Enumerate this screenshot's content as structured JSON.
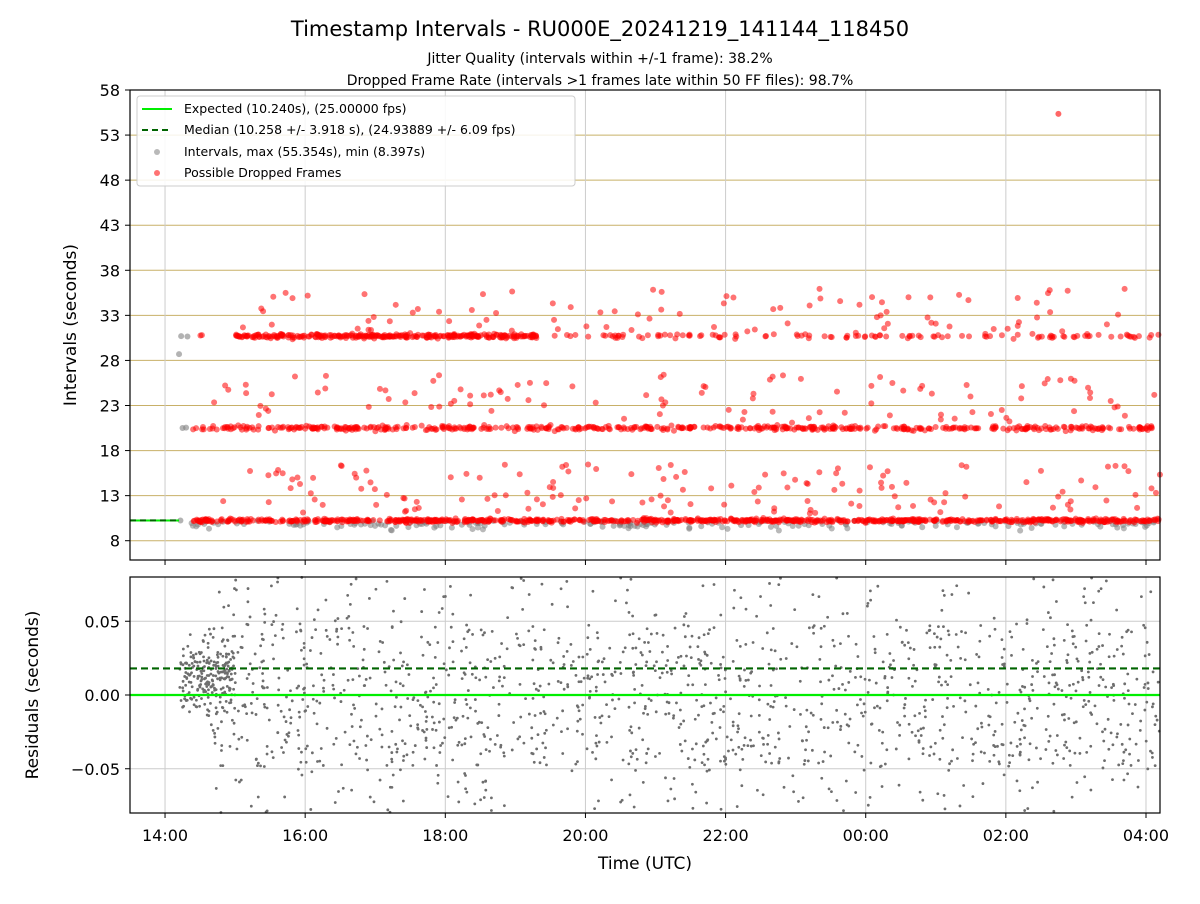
{
  "chart_data": [
    {
      "type": "scatter",
      "panel": "intervals",
      "title": "Timestamp Intervals - RU000E_20241219_141144_118450",
      "subtitle_1": "Jitter Quality (intervals within +/-1 frame): 38.2%",
      "subtitle_2": "Dropped Frame Rate (intervals >1 frames late within 50 FF files): 98.7%",
      "ylabel": "Intervals (seconds)",
      "ylim": [
        5.86,
        58
      ],
      "yticks": [
        "8",
        "13",
        "18",
        "23",
        "28",
        "33",
        "38",
        "43",
        "48",
        "53",
        "58"
      ],
      "ytick_values": [
        8,
        13,
        18,
        23,
        28,
        33,
        38,
        43,
        48,
        53,
        58
      ],
      "x_range_hours": [
        13.5,
        28.2
      ],
      "grid": true,
      "legend_position": "upper-left",
      "legend": [
        {
          "label": "Expected (10.240s), (25.00000 fps)",
          "style": "line",
          "color": "#00ee00"
        },
        {
          "label": "Median (10.258 +/- 3.918 s), (24.93889 +/- 6.09 fps)",
          "style": "dashed",
          "color": "#006400"
        },
        {
          "label": "Intervals, max (55.354s), min (8.397s)",
          "style": "marker",
          "color": "#808080"
        },
        {
          "label": "Possible Dropped Frames",
          "style": "marker",
          "color": "#ff0000"
        }
      ],
      "series": [
        {
          "name": "Expected (10.240s), (25.00000 fps)",
          "y_constant": 10.24,
          "x_range_hours": [
            13.5,
            14.2
          ]
        },
        {
          "name": "Median (10.258 +/- 3.918 s), (24.93889 +/- 6.09 fps)",
          "y_constant": 10.258,
          "x_range_hours": [
            13.5,
            14.2
          ]
        },
        {
          "name": "Intervals, max (55.354s), min (8.397s)",
          "max": 55.354,
          "min": 8.397,
          "x_start_hours": 14.2,
          "x_end_hours": 28.2,
          "bands": [
            10.24,
            20.5,
            30.7
          ]
        },
        {
          "name": "Possible Dropped Frames",
          "x_start_hours": 14.4,
          "x_end_hours": 28.2,
          "bands": [
            10.24,
            20.5,
            30.7
          ],
          "max": 55.354
        }
      ]
    },
    {
      "type": "scatter",
      "panel": "residuals",
      "ylabel": "Residuals (seconds)",
      "xlabel": "Time (UTC)",
      "ylim": [
        -0.08,
        0.08
      ],
      "yticks": [
        "−0.05",
        "0.00",
        "0.05"
      ],
      "ytick_values": [
        -0.05,
        0.0,
        0.05
      ],
      "xticks": [
        "14:00",
        "16:00",
        "18:00",
        "20:00",
        "22:00",
        "00:00",
        "02:00",
        "04:00"
      ],
      "xtick_values_hours": [
        14,
        16,
        18,
        20,
        22,
        24,
        26,
        28
      ],
      "x_range_hours": [
        13.5,
        28.2
      ],
      "grid": true,
      "series": [
        {
          "name": "Expected",
          "y_constant": 0.0,
          "color": "#00ee00"
        },
        {
          "name": "Median",
          "y_constant": 0.018,
          "color": "#006400"
        },
        {
          "name": "Residuals",
          "color": "#808080",
          "x_start_hours": 14.2,
          "x_end_hours": 28.2
        }
      ]
    }
  ]
}
